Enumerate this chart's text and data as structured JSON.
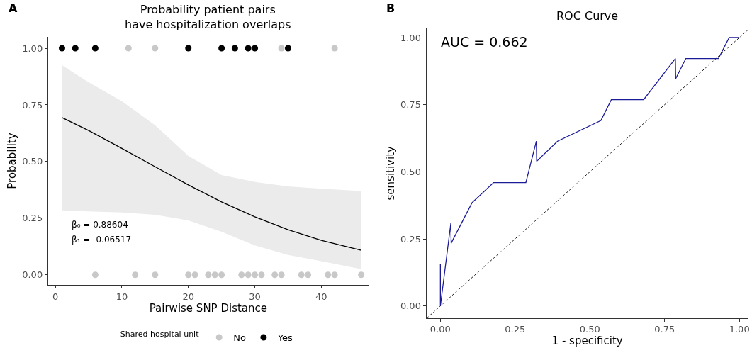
{
  "chart_data": [
    {
      "type": "scatter",
      "title": "Probability patient pairs\nhave hospitalization overlaps",
      "xlabel": "Pairwise SNP Distance",
      "ylabel": "Probability",
      "legend_title": "Shared hospital unit",
      "legend": "bottom",
      "marker": "circle",
      "xlim": [
        -1.1,
        47.1
      ],
      "xticks": [
        0,
        10,
        20,
        30,
        40
      ],
      "ylim": [
        -0.045,
        1.05
      ],
      "yticks": [
        {
          "value": 0,
          "label": "0.00"
        },
        {
          "value": 0.25,
          "label": "0.25"
        },
        {
          "value": 0.5,
          "label": "0.50"
        },
        {
          "value": 0.75,
          "label": "0.75"
        },
        {
          "value": 1,
          "label": "1.00"
        }
      ],
      "annotations": [
        "A",
        "β₀ = 0.88604",
        "β₁ = -0.06517"
      ],
      "series": [
        {
          "type": "line",
          "marker": "none",
          "color": "#000000",
          "x": [
            1,
            5,
            10,
            15,
            20,
            25,
            30,
            35,
            40,
            46
          ],
          "values": [
            0.694,
            0.637,
            0.558,
            0.477,
            0.397,
            0.322,
            0.256,
            0.199,
            0.152,
            0.108
          ],
          "lower": [
            0.285,
            0.28,
            0.275,
            0.265,
            0.24,
            0.19,
            0.13,
            0.0875,
            0.06,
            0.025
          ],
          "upper": [
            0.925,
            0.85,
            0.766,
            0.66,
            0.525,
            0.44,
            0.41,
            0.39,
            0.38,
            0.37
          ]
        },
        {
          "name": "No",
          "color": "#c8c8c8",
          "x": [
            11,
            15,
            34,
            42,
            6,
            12,
            15,
            20,
            21,
            23,
            24,
            25,
            28,
            29,
            30,
            31,
            33,
            34,
            37,
            38,
            41,
            42,
            46
          ],
          "values": [
            1,
            1,
            1,
            1,
            0,
            0,
            0,
            0,
            0,
            0,
            0,
            0,
            0,
            0,
            0,
            0,
            0,
            0,
            0,
            0,
            0,
            0,
            0
          ]
        },
        {
          "name": "Yes",
          "color": "#000000",
          "x": [
            1,
            3,
            6,
            20,
            25,
            27,
            29,
            30,
            35
          ],
          "values": [
            1,
            1,
            1,
            1,
            1,
            1,
            1,
            1,
            1
          ]
        }
      ]
    },
    {
      "type": "line",
      "title": "ROC Curve",
      "xlabel": "1 - specificity",
      "ylabel": "sensitivity",
      "xlim": [
        -0.047,
        1.03
      ],
      "xticks": [
        {
          "value": 0,
          "label": "0.00"
        },
        {
          "value": 0.25,
          "label": "0.25"
        },
        {
          "value": 0.5,
          "label": "0.50"
        },
        {
          "value": 0.75,
          "label": "0.75"
        },
        {
          "value": 1,
          "label": "1.00"
        }
      ],
      "ylim": [
        -0.045,
        1.035
      ],
      "yticks": [
        {
          "value": 0,
          "label": "0.00"
        },
        {
          "value": 0.25,
          "label": "0.25"
        },
        {
          "value": 0.5,
          "label": "0.50"
        },
        {
          "value": 0.75,
          "label": "0.75"
        },
        {
          "value": 1,
          "label": "1.00"
        }
      ],
      "annotations": [
        "B",
        "AUC = 0.662"
      ],
      "series": [
        {
          "color": "#000000",
          "line_style": "dotted",
          "x": [
            -0.045,
            1.03
          ],
          "values": [
            -0.045,
            1.03
          ]
        },
        {
          "color": "#1c1c99",
          "x": [
            0,
            0,
            0.035,
            0.036,
            0.106,
            0.178,
            0.286,
            0.321,
            0.322,
            0.392,
            0.537,
            0.572,
            0.68,
            0.786,
            0.787,
            0.821,
            0.93,
            0.966,
            1.0
          ],
          "values": [
            0.155,
            0.0,
            0.309,
            0.234,
            0.385,
            0.46,
            0.46,
            0.614,
            0.539,
            0.614,
            0.691,
            0.769,
            0.769,
            0.922,
            0.847,
            0.922,
            0.922,
            1.0,
            1.0
          ]
        }
      ]
    }
  ]
}
